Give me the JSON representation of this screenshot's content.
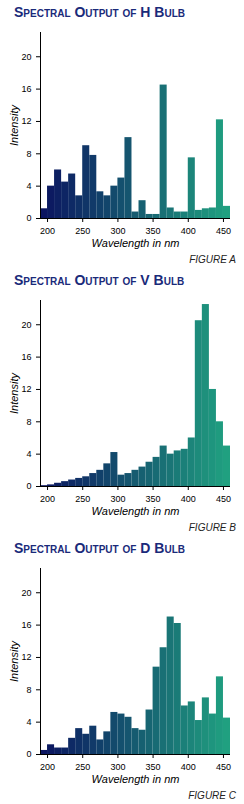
{
  "chart_data": [
    {
      "type": "histogram",
      "title": "Spectral Output of H Bulb",
      "caption": "FIGURE A",
      "x_label": "Wavelength in nm",
      "y_label": "Intensity",
      "bins": [
        190,
        200,
        210,
        220,
        230,
        240,
        250,
        260,
        270,
        280,
        290,
        300,
        310,
        320,
        330,
        340,
        350,
        360,
        370,
        380,
        390,
        400,
        410,
        420,
        430,
        440,
        450,
        460
      ],
      "values": [
        1.2,
        4,
        6,
        4.5,
        5.5,
        2.8,
        9,
        7.8,
        3.3,
        2.8,
        4,
        5,
        10,
        0.8,
        2.2,
        0.5,
        0.5,
        16.5,
        1.3,
        0.8,
        0.8,
        7.5,
        1,
        1.2,
        1.3,
        12.2,
        1.5
      ],
      "colors": [
        "#0b1560",
        "#0c1a61",
        "#0d2062",
        "#0d2564",
        "#0e2a65",
        "#0f3066",
        "#103567",
        "#113a69",
        "#11406a",
        "#12456b",
        "#134a6c",
        "#14506e",
        "#15556f",
        "#165b70",
        "#166071",
        "#176572",
        "#186b74",
        "#197075",
        "#1a7576",
        "#1a7b77",
        "#1b8079",
        "#1c857a",
        "#1d8b7b",
        "#1e907c",
        "#1e957e",
        "#1f9b7f",
        "#20a080"
      ],
      "xlim": [
        190,
        460
      ],
      "ylim": [
        0,
        23
      ],
      "xticks": [
        200,
        250,
        300,
        350,
        400,
        450
      ],
      "yticks": [
        0,
        4,
        8,
        12,
        16,
        20
      ]
    },
    {
      "type": "histogram",
      "title": "Spectral Output of V Bulb",
      "caption": "FIGURE B",
      "x_label": "Wavelength in nm",
      "y_label": "Intensity",
      "bins": [
        190,
        200,
        210,
        220,
        230,
        240,
        250,
        260,
        270,
        280,
        290,
        300,
        310,
        320,
        330,
        340,
        350,
        360,
        370,
        380,
        390,
        400,
        410,
        420,
        430,
        440,
        450,
        460
      ],
      "values": [
        0.1,
        0.2,
        0.4,
        0.6,
        0.8,
        1,
        1.2,
        1.6,
        2,
        2.8,
        4.2,
        1.4,
        1.6,
        2,
        2.4,
        3,
        3.6,
        5,
        4,
        4.4,
        4.6,
        6,
        20.5,
        22.5,
        12,
        8,
        5
      ],
      "colors": [
        "#0b1560",
        "#0c1a61",
        "#0d2062",
        "#0d2564",
        "#0e2a65",
        "#0f3066",
        "#103567",
        "#113a69",
        "#11406a",
        "#12456b",
        "#134a6c",
        "#14506e",
        "#15556f",
        "#165b70",
        "#166071",
        "#176572",
        "#186b74",
        "#197075",
        "#1a7576",
        "#1a7b77",
        "#1b8079",
        "#1c857a",
        "#1d8b7b",
        "#1e907c",
        "#1e957e",
        "#1f9b7f",
        "#20a080"
      ],
      "xlim": [
        190,
        460
      ],
      "ylim": [
        0,
        23
      ],
      "xticks": [
        200,
        250,
        300,
        350,
        400,
        450
      ],
      "yticks": [
        0,
        4,
        8,
        12,
        16,
        20
      ]
    },
    {
      "type": "histogram",
      "title": "Spectral Output of D Bulb",
      "caption": "FIGURE C",
      "x_label": "Wavelength in nm",
      "y_label": "Intensity",
      "bins": [
        190,
        200,
        210,
        220,
        230,
        240,
        250,
        260,
        270,
        280,
        290,
        300,
        310,
        320,
        330,
        340,
        350,
        360,
        370,
        380,
        390,
        400,
        410,
        420,
        430,
        440,
        450,
        460
      ],
      "values": [
        0.5,
        1.2,
        0.8,
        0.8,
        2,
        3.2,
        2.5,
        3.5,
        1.8,
        2.8,
        5.2,
        5,
        4.6,
        3.2,
        3,
        5.5,
        10.8,
        13.2,
        17,
        16.2,
        6,
        6.5,
        4.2,
        7,
        5,
        9.6,
        4.5
      ],
      "colors": [
        "#0b1560",
        "#0c1a61",
        "#0d2062",
        "#0d2564",
        "#0e2a65",
        "#0f3066",
        "#103567",
        "#113a69",
        "#11406a",
        "#12456b",
        "#134a6c",
        "#14506e",
        "#15556f",
        "#165b70",
        "#166071",
        "#176572",
        "#186b74",
        "#197075",
        "#1a7576",
        "#1a7b77",
        "#1b8079",
        "#1c857a",
        "#1d8b7b",
        "#1e907c",
        "#1e957e",
        "#1f9b7f",
        "#20a080"
      ],
      "xlim": [
        190,
        460
      ],
      "ylim": [
        0,
        23
      ],
      "xticks": [
        200,
        250,
        300,
        350,
        400,
        450
      ],
      "yticks": [
        0,
        4,
        8,
        12,
        16,
        20
      ]
    }
  ]
}
